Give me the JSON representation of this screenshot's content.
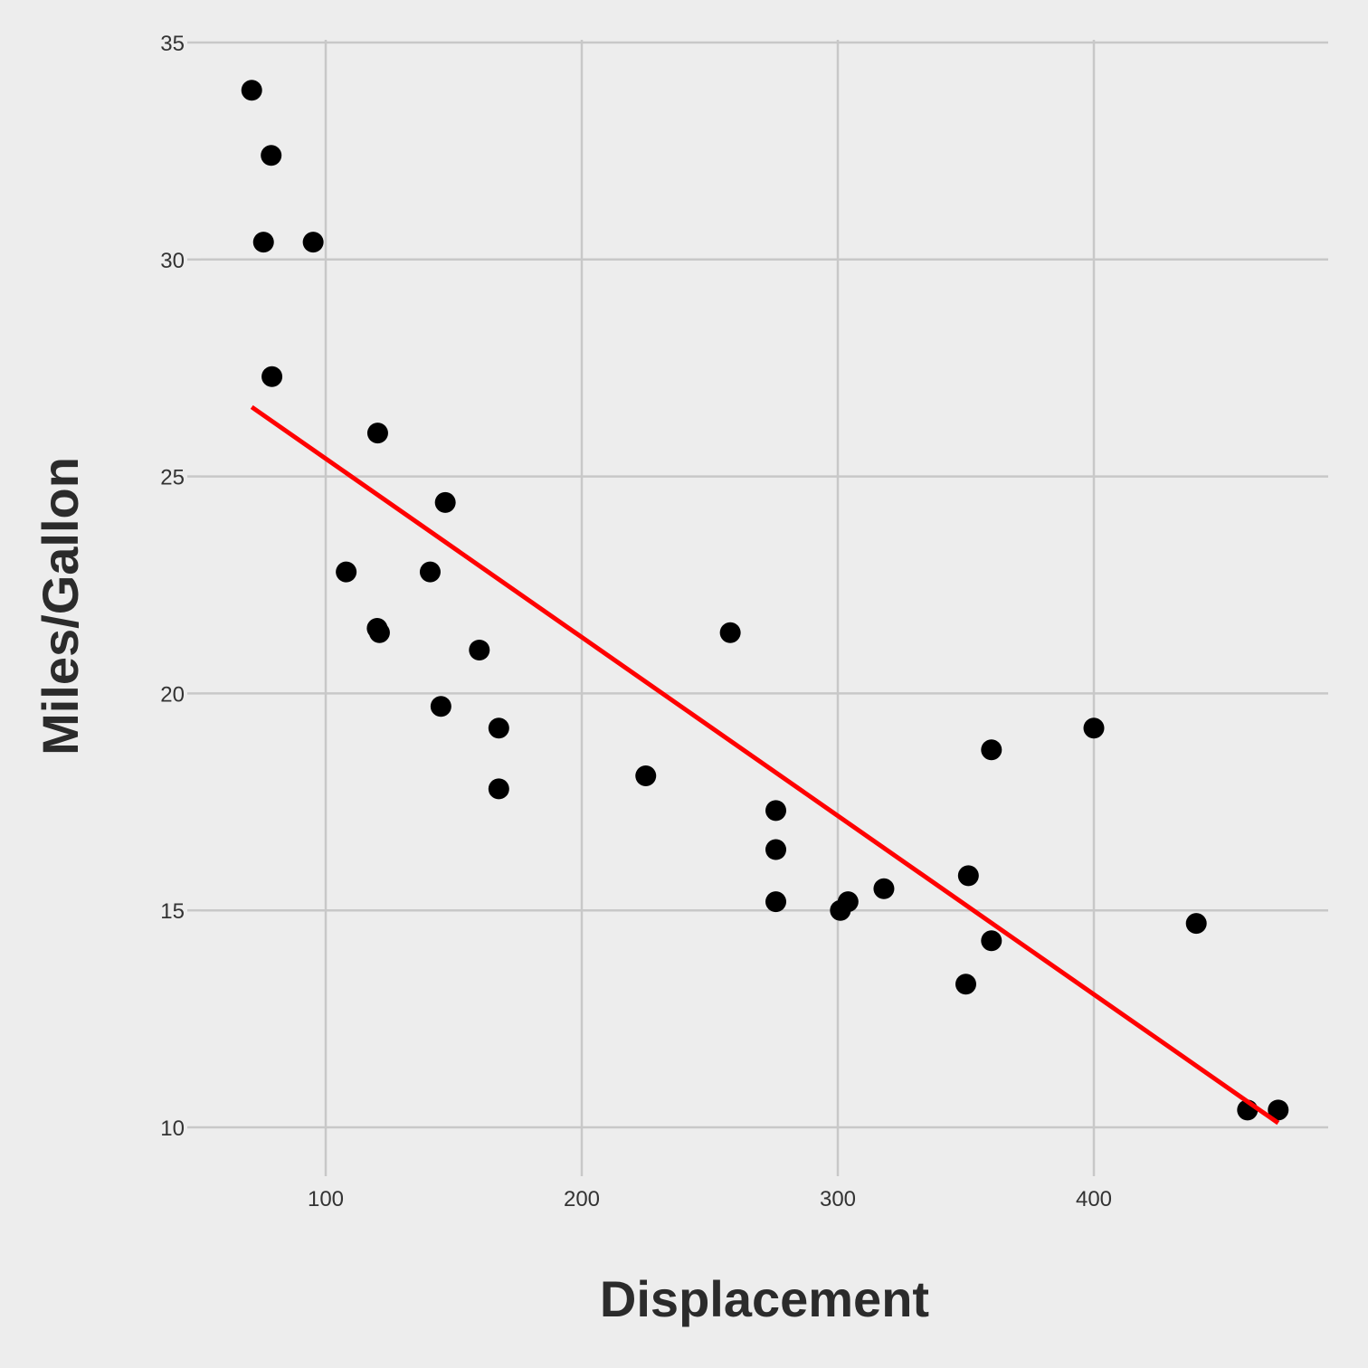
{
  "chart_data": {
    "type": "scatter",
    "title": "",
    "xlabel": "Displacement",
    "ylabel": "Miles/Gallon",
    "xlim": [
      52,
      492
    ],
    "ylim": [
      9,
      35
    ],
    "x_ticks": [
      100,
      200,
      300,
      400
    ],
    "y_ticks": [
      10,
      15,
      20,
      25,
      30,
      35
    ],
    "x_tick_labels": [
      "100",
      "200",
      "300",
      "400"
    ],
    "y_tick_labels": [
      "10",
      "15",
      "20",
      "25",
      "30",
      "35"
    ],
    "grid": true,
    "legend": "none",
    "point_color": "#000000",
    "line_color": "#ff0000",
    "background": "#ededed",
    "grid_color": "#c8c8c8",
    "points": [
      {
        "x": 71.1,
        "y": 33.9
      },
      {
        "x": 78.7,
        "y": 32.4
      },
      {
        "x": 75.7,
        "y": 30.4
      },
      {
        "x": 95.1,
        "y": 30.4
      },
      {
        "x": 79.0,
        "y": 27.3
      },
      {
        "x": 120.3,
        "y": 26.0
      },
      {
        "x": 146.7,
        "y": 24.4
      },
      {
        "x": 108.0,
        "y": 22.8
      },
      {
        "x": 140.8,
        "y": 22.8
      },
      {
        "x": 120.1,
        "y": 21.5
      },
      {
        "x": 121.0,
        "y": 21.4
      },
      {
        "x": 258.0,
        "y": 21.4
      },
      {
        "x": 160.0,
        "y": 21.0
      },
      {
        "x": 145.0,
        "y": 19.7
      },
      {
        "x": 167.6,
        "y": 19.2
      },
      {
        "x": 400.0,
        "y": 19.2
      },
      {
        "x": 360.0,
        "y": 18.7
      },
      {
        "x": 225.0,
        "y": 18.1
      },
      {
        "x": 167.6,
        "y": 17.8
      },
      {
        "x": 275.8,
        "y": 17.3
      },
      {
        "x": 275.8,
        "y": 16.4
      },
      {
        "x": 351.0,
        "y": 15.8
      },
      {
        "x": 318.0,
        "y": 15.5
      },
      {
        "x": 275.8,
        "y": 15.2
      },
      {
        "x": 304.0,
        "y": 15.2
      },
      {
        "x": 301.0,
        "y": 15.0
      },
      {
        "x": 440.0,
        "y": 14.7
      },
      {
        "x": 360.0,
        "y": 14.3
      },
      {
        "x": 350.0,
        "y": 13.3
      },
      {
        "x": 460.0,
        "y": 10.4
      },
      {
        "x": 472.0,
        "y": 10.4
      }
    ],
    "fit_line": {
      "x": [
        71.1,
        472.0
      ],
      "y": [
        26.6,
        10.1
      ]
    }
  }
}
